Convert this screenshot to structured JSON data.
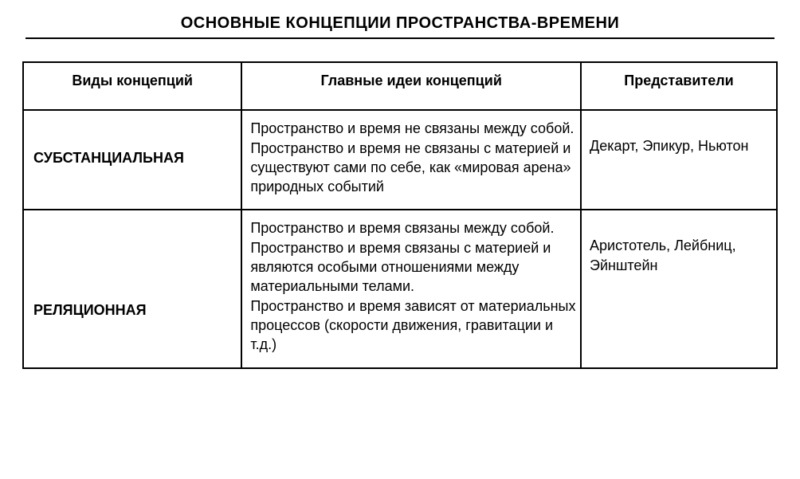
{
  "title": "ОСНОВНЫЕ КОНЦЕПЦИИ ПРОСТРАНСТВА-ВРЕМЕНИ",
  "table": {
    "columns": [
      "Виды концепций",
      "Главные идеи концепций",
      "Представители"
    ],
    "rows": [
      {
        "concept": "СУБСТАНЦИАЛЬНАЯ",
        "ideas": "Пространство и время не связаны между собой.\nПространство и время не связаны с материей и существуют сами по себе, как «мировая арена» природных событий",
        "representatives": "Декарт, Эпикур, Ньютон"
      },
      {
        "concept": "РЕЛЯЦИОННАЯ",
        "ideas": "Пространство и время связаны между собой.\nПространство и время связаны с материей и являются особыми отношениями между материальными телами.\nПространство и время зависят от материальных процессов (скорости движения, гравитации и т.д.)",
        "representatives": "Аристотель, Лейбниц, Эйнштейн"
      }
    ],
    "styling": {
      "background_color": "#ffffff",
      "text_color": "#000000",
      "border_color": "#000000",
      "border_width": 2,
      "title_fontsize": 20,
      "title_fontweight": "bold",
      "header_fontsize": 18,
      "header_fontweight": "bold",
      "body_fontsize": 18,
      "concept_fontweight": "bold",
      "font_family": "Arial",
      "col_widths_percent": [
        29,
        45,
        26
      ]
    }
  }
}
